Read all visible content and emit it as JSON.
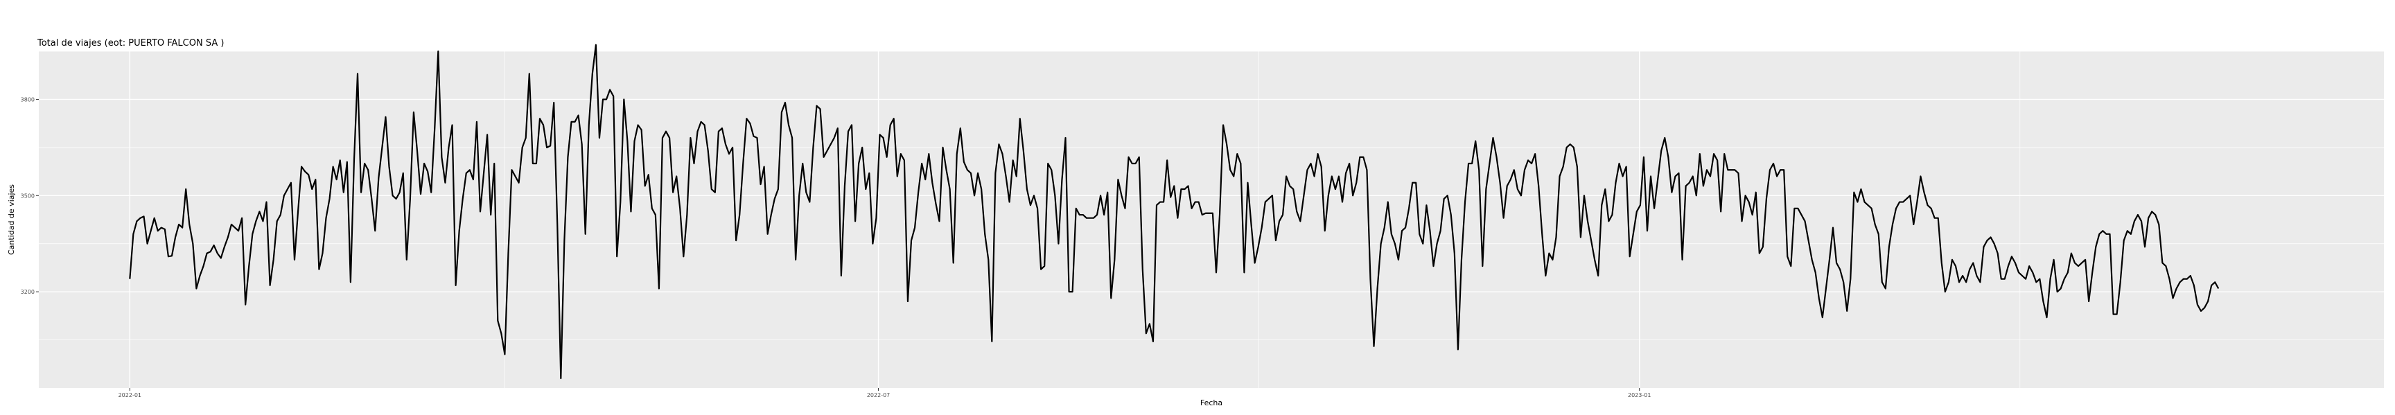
{
  "chart_data": {
    "type": "line",
    "title": "Total de viajes (eot: PUERTO FALCON SA )",
    "xlabel": "Fecha",
    "ylabel": "Cantidad de viajes",
    "x_start": "2022-01-01",
    "x_end": "2023-05-21",
    "xlim": [
      "2021-12-10",
      "2023-06-30"
    ],
    "ylim": [
      2900,
      3950
    ],
    "x_ticks": [
      {
        "value": "2022-01-01",
        "label": "2022-01"
      },
      {
        "value": "2022-07-01",
        "label": "2022-07"
      },
      {
        "value": "2023-01-01",
        "label": "2023-01"
      }
    ],
    "y_ticks": [
      {
        "value": 3200,
        "label": "3200"
      },
      {
        "value": 3500,
        "label": "3500"
      },
      {
        "value": 3800,
        "label": "3800"
      }
    ],
    "grid": true,
    "line_color": "#000000",
    "panel_color": "#ebebeb",
    "values": [
      3240,
      3380,
      3420,
      3430,
      3435,
      3350,
      3390,
      3430,
      3390,
      3400,
      3395,
      3310,
      3312,
      3370,
      3410,
      3400,
      3520,
      3410,
      3350,
      3210,
      3250,
      3280,
      3320,
      3325,
      3345,
      3320,
      3305,
      3340,
      3370,
      3410,
      3400,
      3390,
      3430,
      3160,
      3280,
      3380,
      3420,
      3450,
      3420,
      3480,
      3220,
      3300,
      3420,
      3440,
      3500,
      3520,
      3540,
      3300,
      3450,
      3590,
      3575,
      3565,
      3520,
      3550,
      3270,
      3320,
      3430,
      3490,
      3590,
      3550,
      3610,
      3510,
      3605,
      3230,
      3610,
      3880,
      3510,
      3600,
      3580,
      3490,
      3390,
      3555,
      3650,
      3745,
      3590,
      3500,
      3490,
      3510,
      3570,
      3300,
      3490,
      3760,
      3640,
      3505,
      3600,
      3575,
      3510,
      3710,
      3950,
      3620,
      3540,
      3650,
      3720,
      3220,
      3390,
      3490,
      3570,
      3580,
      3550,
      3730,
      3450,
      3570,
      3690,
      3440,
      3600,
      3110,
      3070,
      3005,
      3320,
      3580,
      3560,
      3540,
      3650,
      3680,
      3880,
      3600,
      3600,
      3740,
      3720,
      3650,
      3655,
      3790,
      3410,
      2930,
      3360,
      3620,
      3730,
      3730,
      3750,
      3660,
      3380,
      3720,
      3880,
      3970,
      3680,
      3800,
      3800,
      3830,
      3810,
      3310,
      3480,
      3800,
      3670,
      3450,
      3670,
      3720,
      3705,
      3530,
      3565,
      3460,
      3440,
      3210,
      3680,
      3700,
      3680,
      3510,
      3560,
      3460,
      3310,
      3440,
      3680,
      3600,
      3700,
      3730,
      3720,
      3640,
      3520,
      3510,
      3700,
      3710,
      3660,
      3630,
      3650,
      3360,
      3440,
      3600,
      3740,
      3725,
      3685,
      3680,
      3535,
      3590,
      3380,
      3440,
      3490,
      3520,
      3760,
      3790,
      3720,
      3680,
      3300,
      3500,
      3600,
      3510,
      3480,
      3650,
      3780,
      3770,
      3620,
      3640,
      3660,
      3680,
      3710,
      3250,
      3530,
      3700,
      3720,
      3420,
      3600,
      3650,
      3520,
      3570,
      3350,
      3430,
      3690,
      3680,
      3620,
      3720,
      3740,
      3560,
      3630,
      3610,
      3170,
      3360,
      3400,
      3510,
      3600,
      3550,
      3630,
      3540,
      3475,
      3420,
      3650,
      3580,
      3520,
      3290,
      3630,
      3710,
      3605,
      3580,
      3570,
      3500,
      3570,
      3520,
      3380,
      3300,
      3045,
      3570,
      3660,
      3630,
      3560,
      3480,
      3610,
      3560,
      3740,
      3640,
      3520,
      3470,
      3500,
      3460,
      3270,
      3280,
      3600,
      3580,
      3500,
      3350,
      3550,
      3680,
      3200,
      3200,
      3460,
      3440,
      3440,
      3430,
      3430,
      3430,
      3440,
      3500,
      3440,
      3510,
      3180,
      3300,
      3550,
      3500,
      3460,
      3620,
      3600,
      3600,
      3620,
      3270,
      3070,
      3100,
      3045,
      3470,
      3480,
      3480,
      3610,
      3495,
      3530,
      3430,
      3520,
      3520,
      3530,
      3460,
      3480,
      3480,
      3440,
      3445,
      3445,
      3445,
      3260,
      3440,
      3720,
      3660,
      3580,
      3560,
      3630,
      3600,
      3260,
      3540,
      3410,
      3290,
      3340,
      3400,
      3480,
      3490,
      3500,
      3360,
      3420,
      3440,
      3560,
      3530,
      3520,
      3450,
      3420,
      3500,
      3580,
      3600,
      3560,
      3630,
      3590,
      3390,
      3500,
      3560,
      3520,
      3560,
      3480,
      3570,
      3600,
      3500,
      3540,
      3620,
      3620,
      3580,
      3240,
      3030,
      3210,
      3350,
      3400,
      3480,
      3380,
      3350,
      3300,
      3390,
      3400,
      3460,
      3540,
      3540,
      3380,
      3350,
      3470,
      3390,
      3280,
      3350,
      3390,
      3490,
      3500,
      3440,
      3320,
      3020,
      3300,
      3480,
      3600,
      3600,
      3670,
      3580,
      3280,
      3520,
      3600,
      3680,
      3620,
      3540,
      3430,
      3530,
      3550,
      3580,
      3520,
      3500,
      3580,
      3610,
      3600,
      3630,
      3530,
      3380,
      3250,
      3320,
      3300,
      3370,
      3560,
      3590,
      3650,
      3660,
      3650,
      3590,
      3370,
      3500,
      3420,
      3360,
      3300,
      3250,
      3470,
      3520,
      3420,
      3440,
      3540,
      3600,
      3560,
      3590,
      3310,
      3380,
      3450,
      3470,
      3620,
      3390,
      3560,
      3460,
      3550,
      3640,
      3680,
      3620,
      3510,
      3560,
      3570,
      3300,
      3530,
      3540,
      3560,
      3500,
      3630,
      3530,
      3580,
      3560,
      3630,
      3610,
      3450,
      3630,
      3580,
      3580,
      3580,
      3570,
      3420,
      3500,
      3480,
      3440,
      3510,
      3320,
      3340,
      3490,
      3580,
      3600,
      3560,
      3580,
      3580,
      3310,
      3280,
      3460,
      3460,
      3440,
      3420,
      3360,
      3300,
      3260,
      3180,
      3120,
      3210,
      3300,
      3400,
      3290,
      3270,
      3230,
      3140,
      3240,
      3510,
      3480,
      3520,
      3480,
      3470,
      3460,
      3410,
      3380,
      3230,
      3210,
      3340,
      3410,
      3460,
      3480,
      3480,
      3490,
      3500,
      3410,
      3480,
      3560,
      3510,
      3470,
      3460,
      3430,
      3430,
      3290,
      3200,
      3230,
      3300,
      3280,
      3230,
      3250,
      3230,
      3270,
      3290,
      3250,
      3230,
      3340,
      3360,
      3370,
      3350,
      3320,
      3240,
      3240,
      3280,
      3310,
      3290,
      3260,
      3250,
      3240,
      3280,
      3260,
      3230,
      3240,
      3170,
      3120,
      3240,
      3300,
      3200,
      3210,
      3240,
      3260,
      3320,
      3290,
      3280,
      3290,
      3300,
      3170,
      3260,
      3340,
      3380,
      3390,
      3380,
      3380,
      3130,
      3130,
      3230,
      3360,
      3390,
      3380,
      3420,
      3440,
      3420,
      3340,
      3430,
      3450,
      3440,
      3410,
      3290,
      3280,
      3240,
      3180,
      3210,
      3230,
      3240,
      3240,
      3250,
      3220,
      3160,
      3140,
      3150,
      3170,
      3220,
      3230,
      3210
    ]
  }
}
